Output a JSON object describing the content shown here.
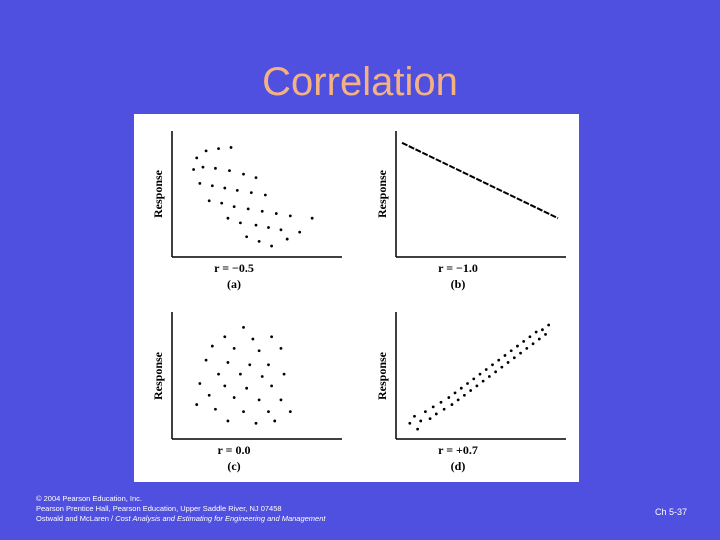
{
  "slide": {
    "title": "Correlation",
    "footer_line1": "© 2004 Pearson Education, Inc.",
    "footer_line2": "Pearson Prentice Hall, Pearson Education, Upper Saddle River, NJ 07458",
    "footer_line3_plain": "Ostwald and McLaren / ",
    "footer_line3_italic": "Cost Analysis and Estimating for Engineering and Management",
    "slide_number": "Ch 5-37"
  },
  "colors": {
    "background": "#5050e0",
    "title": "#f4b183",
    "footer": "#ffffff"
  },
  "chart_data": [
    {
      "type": "scatter",
      "ylabel": "Response",
      "caption": "r = −0.5",
      "panel_label": "(a)",
      "points": [
        [
          0.12,
          0.82
        ],
        [
          0.18,
          0.88
        ],
        [
          0.26,
          0.9
        ],
        [
          0.34,
          0.91
        ],
        [
          0.1,
          0.72
        ],
        [
          0.16,
          0.74
        ],
        [
          0.24,
          0.73
        ],
        [
          0.33,
          0.71
        ],
        [
          0.42,
          0.68
        ],
        [
          0.5,
          0.65
        ],
        [
          0.14,
          0.6
        ],
        [
          0.22,
          0.58
        ],
        [
          0.3,
          0.56
        ],
        [
          0.38,
          0.54
        ],
        [
          0.47,
          0.52
        ],
        [
          0.56,
          0.5
        ],
        [
          0.2,
          0.45
        ],
        [
          0.28,
          0.43
        ],
        [
          0.36,
          0.4
        ],
        [
          0.45,
          0.38
        ],
        [
          0.54,
          0.36
        ],
        [
          0.63,
          0.34
        ],
        [
          0.72,
          0.32
        ],
        [
          0.32,
          0.3
        ],
        [
          0.4,
          0.26
        ],
        [
          0.5,
          0.24
        ],
        [
          0.58,
          0.22
        ],
        [
          0.66,
          0.2
        ],
        [
          0.44,
          0.14
        ],
        [
          0.52,
          0.1
        ],
        [
          0.6,
          0.06
        ],
        [
          0.7,
          0.12
        ],
        [
          0.78,
          0.18
        ],
        [
          0.86,
          0.3
        ]
      ]
    },
    {
      "type": "line",
      "ylabel": "Response",
      "caption": "r = −1.0",
      "panel_label": "(b)",
      "x": [
        0,
        1
      ],
      "y": [
        0.95,
        0.3
      ]
    },
    {
      "type": "scatter",
      "ylabel": "Response",
      "caption": "r = 0.0",
      "panel_label": "(c)",
      "points": [
        [
          0.42,
          0.92
        ],
        [
          0.3,
          0.84
        ],
        [
          0.48,
          0.82
        ],
        [
          0.6,
          0.84
        ],
        [
          0.22,
          0.76
        ],
        [
          0.36,
          0.74
        ],
        [
          0.52,
          0.72
        ],
        [
          0.66,
          0.74
        ],
        [
          0.18,
          0.64
        ],
        [
          0.32,
          0.62
        ],
        [
          0.46,
          0.6
        ],
        [
          0.58,
          0.6
        ],
        [
          0.26,
          0.52
        ],
        [
          0.4,
          0.52
        ],
        [
          0.54,
          0.5
        ],
        [
          0.68,
          0.52
        ],
        [
          0.14,
          0.44
        ],
        [
          0.3,
          0.42
        ],
        [
          0.44,
          0.4
        ],
        [
          0.6,
          0.42
        ],
        [
          0.2,
          0.34
        ],
        [
          0.36,
          0.32
        ],
        [
          0.52,
          0.3
        ],
        [
          0.66,
          0.3
        ],
        [
          0.24,
          0.22
        ],
        [
          0.42,
          0.2
        ],
        [
          0.58,
          0.2
        ],
        [
          0.12,
          0.26
        ],
        [
          0.32,
          0.12
        ],
        [
          0.5,
          0.1
        ],
        [
          0.72,
          0.2
        ],
        [
          0.62,
          0.12
        ]
      ]
    },
    {
      "type": "scatter",
      "ylabel": "Response",
      "caption": "r = +0.7",
      "panel_label": "(d)",
      "points": [
        [
          0.05,
          0.1
        ],
        [
          0.08,
          0.16
        ],
        [
          0.12,
          0.12
        ],
        [
          0.1,
          0.05
        ],
        [
          0.15,
          0.2
        ],
        [
          0.18,
          0.14
        ],
        [
          0.2,
          0.24
        ],
        [
          0.22,
          0.18
        ],
        [
          0.25,
          0.28
        ],
        [
          0.27,
          0.22
        ],
        [
          0.3,
          0.32
        ],
        [
          0.32,
          0.26
        ],
        [
          0.34,
          0.36
        ],
        [
          0.36,
          0.3
        ],
        [
          0.38,
          0.4
        ],
        [
          0.4,
          0.34
        ],
        [
          0.42,
          0.44
        ],
        [
          0.44,
          0.38
        ],
        [
          0.46,
          0.48
        ],
        [
          0.48,
          0.42
        ],
        [
          0.5,
          0.52
        ],
        [
          0.52,
          0.46
        ],
        [
          0.54,
          0.56
        ],
        [
          0.56,
          0.5
        ],
        [
          0.58,
          0.6
        ],
        [
          0.6,
          0.54
        ],
        [
          0.62,
          0.64
        ],
        [
          0.64,
          0.58
        ],
        [
          0.66,
          0.68
        ],
        [
          0.68,
          0.62
        ],
        [
          0.7,
          0.72
        ],
        [
          0.72,
          0.66
        ],
        [
          0.74,
          0.76
        ],
        [
          0.76,
          0.7
        ],
        [
          0.78,
          0.8
        ],
        [
          0.8,
          0.74
        ],
        [
          0.82,
          0.84
        ],
        [
          0.84,
          0.78
        ],
        [
          0.86,
          0.88
        ],
        [
          0.88,
          0.82
        ],
        [
          0.9,
          0.9
        ],
        [
          0.92,
          0.86
        ],
        [
          0.94,
          0.94
        ]
      ]
    }
  ]
}
